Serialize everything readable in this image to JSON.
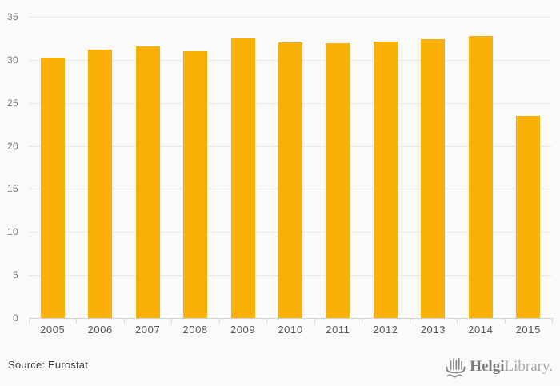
{
  "chart_data": {
    "type": "bar",
    "title": "",
    "xlabel": "",
    "ylabel": "",
    "categories": [
      "2005",
      "2006",
      "2007",
      "2008",
      "2009",
      "2010",
      "2011",
      "2012",
      "2013",
      "2014",
      "2015"
    ],
    "values": [
      30.3,
      31.2,
      31.6,
      31.0,
      32.5,
      32.0,
      31.9,
      32.1,
      32.4,
      32.8,
      23.5
    ],
    "ylim": [
      0,
      35
    ],
    "yticks": [
      0,
      5,
      10,
      15,
      20,
      25,
      30,
      35
    ],
    "grid": true,
    "legend": false,
    "bar_color": "#fab004"
  },
  "footer": {
    "source": "Source: Eurostat",
    "logo": {
      "brand_bold": "Helgi",
      "brand_light": "Library."
    }
  },
  "colors": {
    "background": "#fafafa",
    "gridline": "#e9e9e9",
    "axis": "#cdd3df",
    "bar": "#fab004",
    "logo_gray": "#8a8a8a"
  }
}
